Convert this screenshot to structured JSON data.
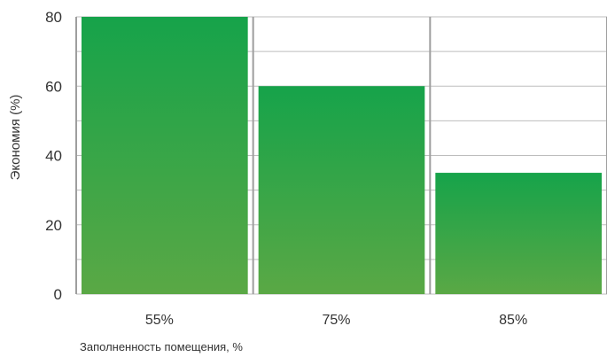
{
  "chart_data": {
    "type": "bar",
    "categories": [
      "55%",
      "75%",
      "85%"
    ],
    "values": [
      80,
      60,
      35
    ],
    "title": "",
    "xlabel": "Заполненность помещения, %",
    "ylabel": "Экономия (%)",
    "ylim": [
      0,
      80
    ],
    "yticks": [
      0,
      20,
      40,
      60,
      80
    ],
    "grid": true,
    "colors": {
      "bar_top": "#16a34a",
      "bar_bottom": "#5aa845",
      "grid": "#bdbdbd",
      "divider": "#9e9e9e"
    }
  }
}
